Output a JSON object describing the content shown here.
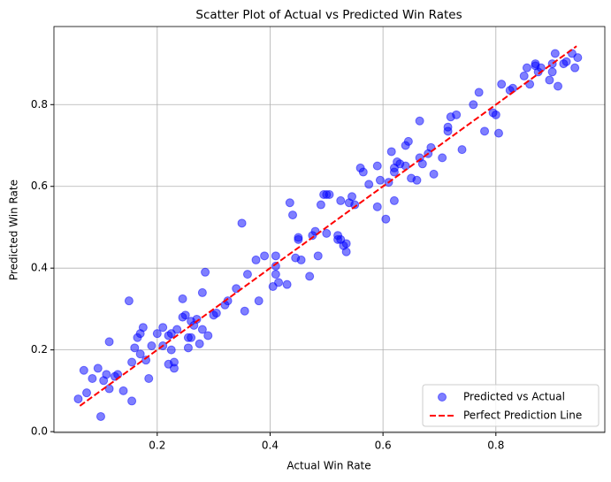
{
  "chart_data": {
    "type": "scatter",
    "title": "Scatter Plot of Actual vs Predicted Win Rates",
    "x_label": "Actual Win Rate",
    "y_label": "Predicted Win Rate",
    "xlim": [
      0.017,
      0.993
    ],
    "ylim": [
      -0.002,
      0.991
    ],
    "xticks": [
      0.2,
      0.4,
      0.6,
      0.8
    ],
    "yticks": [
      {
        "value": 0,
        "label": "0.0"
      },
      0.2,
      0.4,
      0.6,
      0.8
    ],
    "grid": true,
    "legend": "lower right",
    "series": [
      {
        "name": "Predicted vs Actual",
        "type": "scatter",
        "color": "#0000ff",
        "x": [
          0.06,
          0.07,
          0.075,
          0.085,
          0.095,
          0.1,
          0.105,
          0.11,
          0.115,
          0.115,
          0.125,
          0.13,
          0.14,
          0.15,
          0.155,
          0.155,
          0.16,
          0.165,
          0.17,
          0.17,
          0.175,
          0.18,
          0.185,
          0.19,
          0.2,
          0.21,
          0.21,
          0.22,
          0.22,
          0.225,
          0.23,
          0.23,
          0.225,
          0.235,
          0.245,
          0.245,
          0.25,
          0.255,
          0.255,
          0.26,
          0.26,
          0.265,
          0.27,
          0.275,
          0.28,
          0.28,
          0.285,
          0.29,
          0.3,
          0.305,
          0.32,
          0.325,
          0.34,
          0.35,
          0.355,
          0.36,
          0.375,
          0.38,
          0.39,
          0.405,
          0.41,
          0.41,
          0.415,
          0.41,
          0.43,
          0.435,
          0.44,
          0.445,
          0.45,
          0.45,
          0.455,
          0.47,
          0.475,
          0.48,
          0.485,
          0.49,
          0.495,
          0.5,
          0.5,
          0.505,
          0.52,
          0.52,
          0.525,
          0.525,
          0.53,
          0.535,
          0.535,
          0.54,
          0.545,
          0.55,
          0.56,
          0.565,
          0.575,
          0.59,
          0.59,
          0.595,
          0.605,
          0.61,
          0.615,
          0.62,
          0.62,
          0.62,
          0.625,
          0.63,
          0.64,
          0.64,
          0.645,
          0.65,
          0.66,
          0.665,
          0.665,
          0.67,
          0.68,
          0.685,
          0.69,
          0.705,
          0.715,
          0.715,
          0.72,
          0.73,
          0.74,
          0.76,
          0.77,
          0.78,
          0.795,
          0.8,
          0.805,
          0.81,
          0.825,
          0.83,
          0.85,
          0.855,
          0.86,
          0.87,
          0.87,
          0.875,
          0.88,
          0.895,
          0.9,
          0.9,
          0.905,
          0.91,
          0.92,
          0.925,
          0.935,
          0.94,
          0.945
        ],
        "values": [
          0.08,
          0.15,
          0.095,
          0.13,
          0.155,
          0.037,
          0.125,
          0.14,
          0.105,
          0.22,
          0.135,
          0.14,
          0.1,
          0.32,
          0.17,
          0.075,
          0.205,
          0.23,
          0.24,
          0.19,
          0.255,
          0.175,
          0.13,
          0.21,
          0.24,
          0.255,
          0.21,
          0.235,
          0.165,
          0.2,
          0.17,
          0.155,
          0.24,
          0.25,
          0.28,
          0.325,
          0.285,
          0.23,
          0.205,
          0.27,
          0.23,
          0.26,
          0.275,
          0.215,
          0.25,
          0.34,
          0.39,
          0.235,
          0.285,
          0.29,
          0.31,
          0.32,
          0.35,
          0.51,
          0.295,
          0.385,
          0.42,
          0.32,
          0.43,
          0.355,
          0.385,
          0.405,
          0.365,
          0.43,
          0.36,
          0.56,
          0.53,
          0.425,
          0.47,
          0.475,
          0.42,
          0.38,
          0.48,
          0.49,
          0.43,
          0.555,
          0.58,
          0.485,
          0.58,
          0.58,
          0.48,
          0.47,
          0.565,
          0.47,
          0.455,
          0.44,
          0.46,
          0.56,
          0.575,
          0.555,
          0.645,
          0.635,
          0.605,
          0.65,
          0.55,
          0.615,
          0.52,
          0.61,
          0.685,
          0.645,
          0.565,
          0.635,
          0.66,
          0.655,
          0.65,
          0.7,
          0.71,
          0.62,
          0.615,
          0.67,
          0.76,
          0.655,
          0.68,
          0.695,
          0.63,
          0.67,
          0.745,
          0.735,
          0.77,
          0.775,
          0.69,
          0.8,
          0.83,
          0.735,
          0.78,
          0.775,
          0.73,
          0.85,
          0.835,
          0.84,
          0.87,
          0.89,
          0.85,
          0.9,
          0.895,
          0.88,
          0.89,
          0.86,
          0.88,
          0.9,
          0.925,
          0.845,
          0.9,
          0.905,
          0.925,
          0.89,
          0.915
        ]
      },
      {
        "name": "Perfect Prediction Line",
        "type": "line",
        "color": "#ff0000",
        "x": [
          0.063,
          0.943
        ],
        "values": [
          0.063,
          0.943
        ]
      }
    ]
  }
}
